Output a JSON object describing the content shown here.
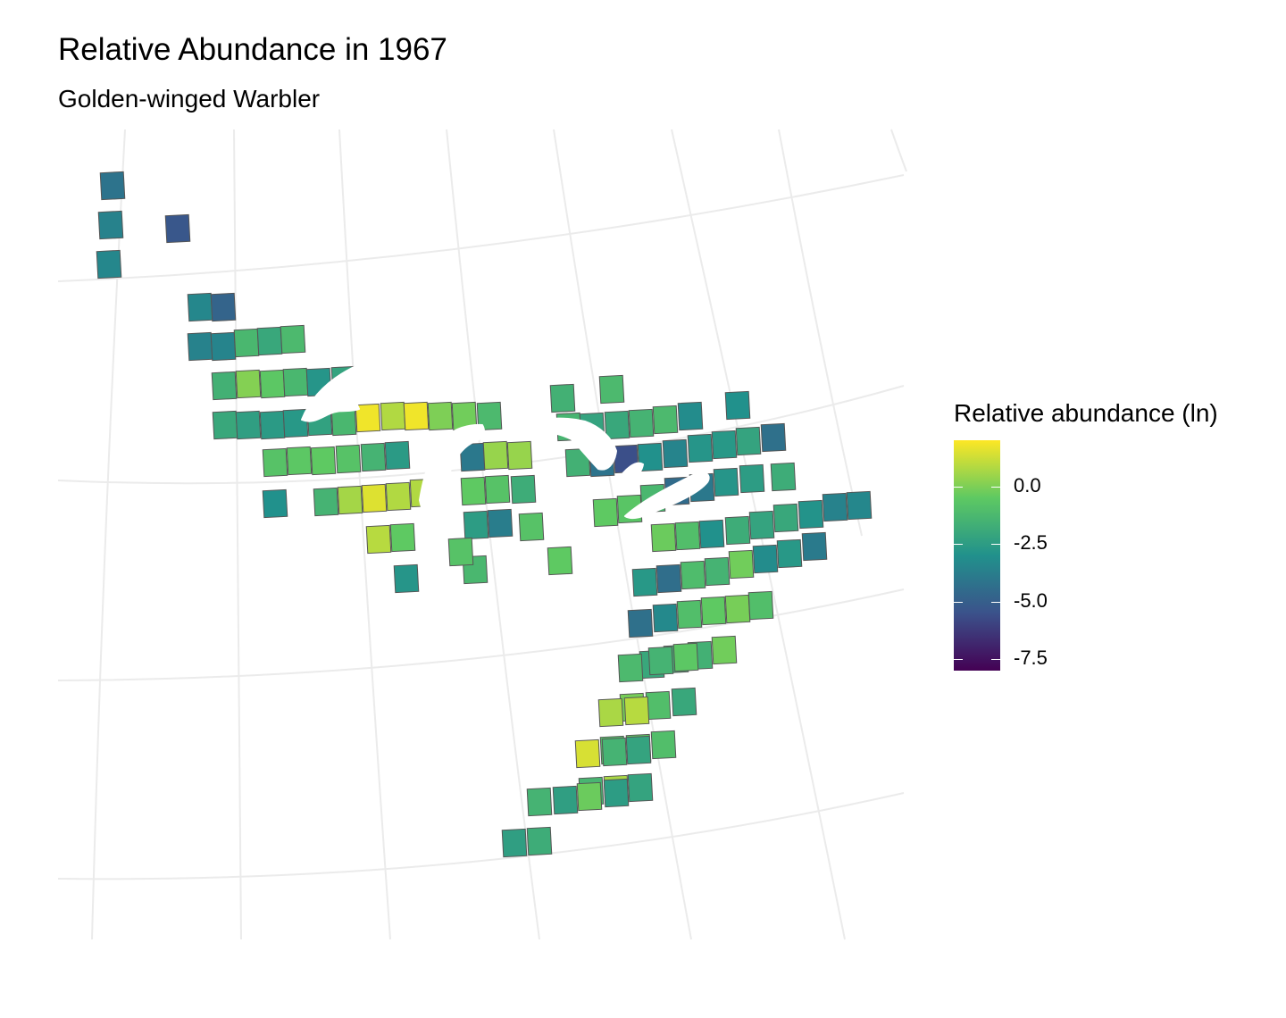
{
  "title": "Relative Abundance in 1967",
  "subtitle": "Golden-winged Warbler",
  "legend": {
    "title": "Relative abundance (ln)",
    "ticks": [
      {
        "label": "0.0",
        "value": 0.0
      },
      {
        "label": "-2.5",
        "value": -2.5
      },
      {
        "label": "-5.0",
        "value": -5.0
      },
      {
        "label": "-7.5",
        "value": -7.5
      }
    ],
    "range": [
      -8.0,
      2.0
    ],
    "palette": [
      "#440154",
      "#3b528b",
      "#21918c",
      "#5ec962",
      "#fde725"
    ]
  },
  "map_data": {
    "cell_values": [
      -4.2,
      -3.6,
      -3.4,
      -5.3,
      -3.4,
      -4.8,
      -3.6,
      -3.5,
      -1.3,
      -2.0,
      -1.2,
      -1.6,
      0.1,
      -0.6,
      -1.3,
      -2.8,
      -2.2,
      -2.0,
      -2.4,
      -2.6,
      -2.7,
      -2.3,
      -1.3,
      1.8,
      0.8,
      1.8,
      0.0,
      -0.2,
      -1.2,
      -0.8,
      -0.6,
      -0.5,
      -0.8,
      -1.5,
      -2.6,
      -3.0,
      -1.5,
      0.6,
      1.5,
      0.8,
      0.8,
      0.9,
      -0.5,
      -2.8,
      -4.0,
      0.4,
      0.4,
      -0.5,
      -0.8,
      -1.8,
      -2.5,
      -3.8,
      -0.8,
      -1.3,
      -0.8,
      -0.5,
      -1.6,
      -1.2,
      -1.4,
      -2.2,
      -2.0,
      -1.5,
      -1.2,
      -3.2,
      -3.0,
      -1.6,
      -4.2,
      -5.6,
      -3.0,
      -3.5,
      -2.8,
      -2.7,
      -2.2,
      -4.3,
      -0.5,
      -0.7,
      -1.3,
      -4.5,
      -4.0,
      -2.8,
      -2.5,
      -1.8,
      -0.3,
      -1.0,
      -3.0,
      -1.8,
      -2.2,
      -2.0,
      -2.9,
      -3.6,
      -3.4,
      -2.7,
      -4.4,
      -1.1,
      -1.5,
      -0.2,
      -3.2,
      -2.7,
      -3.9,
      -4.3,
      -3.3,
      -1.0,
      -0.5,
      -0.1,
      -1.0,
      -2.0,
      -1.6,
      -1.6,
      -0.2,
      -1.2,
      -1.5,
      -0.6,
      -0.1,
      -1.0,
      -2.0,
      0.7,
      0.9,
      -0.9,
      -0.5,
      -1.0,
      1.4,
      -1.5,
      -2.2,
      -1.4,
      0.7,
      -2.2,
      -1.5,
      -2.4,
      -0.3,
      -2.5,
      -2.4,
      -1.8
    ]
  }
}
